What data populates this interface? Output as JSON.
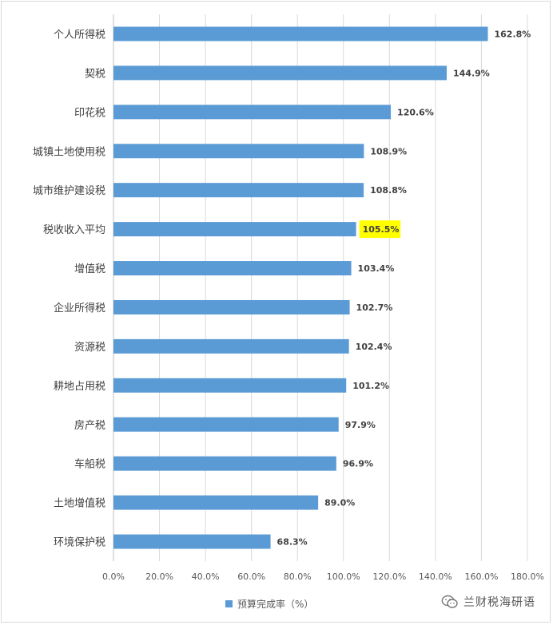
{
  "chart_data": {
    "type": "bar",
    "orientation": "horizontal",
    "categories": [
      "个人所得税",
      "契税",
      "印花税",
      "城镇土地使用税",
      "城市维护建设税",
      "税收收入平均",
      "增值税",
      "企业所得税",
      "资源税",
      "耕地占用税",
      "房产税",
      "车船税",
      "土地增值税",
      "环境保护税"
    ],
    "series": [
      {
        "name": "预算完成率（%）",
        "values": [
          162.8,
          144.9,
          120.6,
          108.9,
          108.8,
          105.5,
          103.4,
          102.7,
          102.4,
          101.2,
          97.9,
          96.9,
          89.0,
          68.3
        ],
        "data_labels": [
          "162.8%",
          "144.9%",
          "120.6%",
          "108.9%",
          "108.8%",
          "105.5%",
          "103.4%",
          "102.7%",
          "102.4%",
          "101.2%",
          "97.9%",
          "96.9%",
          "89.0%",
          "68.3%"
        ]
      }
    ],
    "xlim": [
      0,
      180
    ],
    "x_ticks": [
      "0.0%",
      "20.0%",
      "40.0%",
      "60.0%",
      "80.0%",
      "100.0%",
      "120.0%",
      "140.0%",
      "160.0%",
      "180.0%"
    ],
    "highlight_category": "税收收入平均",
    "highlight_color": "#ffff00",
    "bar_color": "#5b9bd5",
    "grid": "vertical",
    "legend_position": "bottom"
  },
  "legend": {
    "label": "预算完成率（%）"
  },
  "watermark": {
    "text": "兰财税海研语",
    "icon": "wechat-icon"
  }
}
